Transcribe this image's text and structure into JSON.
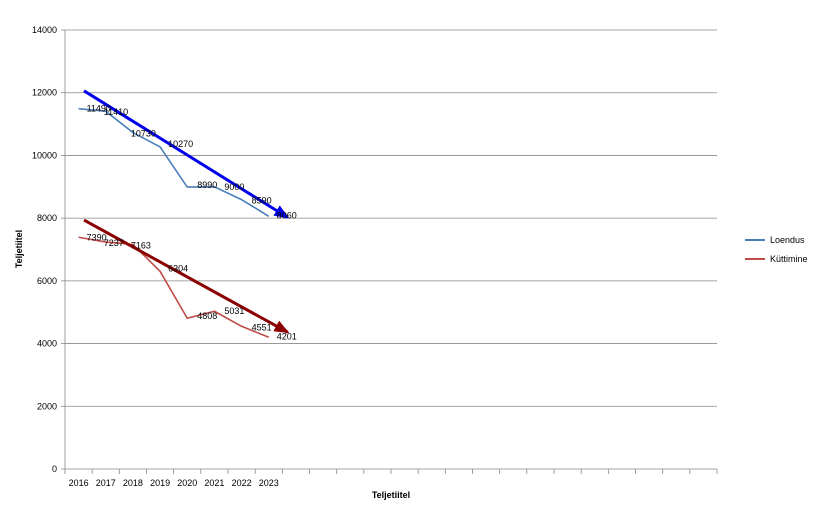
{
  "chart_data": {
    "type": "line",
    "categories": [
      "2016",
      "2017",
      "2018",
      "2019",
      "2020",
      "2021",
      "2022",
      "2023"
    ],
    "extra_category_slots": 16,
    "series": [
      {
        "name": "Loendus",
        "color": "#4a7ebb",
        "values": [
          11490,
          11410,
          10730,
          10270,
          8990,
          9000,
          8590,
          8060
        ]
      },
      {
        "name": "Küttimine",
        "color": "#be4b48",
        "values": [
          7390,
          7237,
          7163,
          6304,
          4808,
          5031,
          4551,
          4201
        ]
      }
    ],
    "trend_arrows": [
      {
        "color": "#0000ee",
        "from": {
          "x": 0.2,
          "y": 12060
        },
        "to": {
          "x": 7.7,
          "y": 8020
        }
      },
      {
        "color": "#8b0000",
        "from": {
          "x": 0.2,
          "y": 7940
        },
        "to": {
          "x": 7.7,
          "y": 4360
        }
      }
    ],
    "xlabel": "Teljetiitel",
    "ylabel": "Teljetiitel",
    "ylim": [
      0,
      14000
    ],
    "ytick_step": 2000,
    "grid": true,
    "legend_position": "right"
  }
}
